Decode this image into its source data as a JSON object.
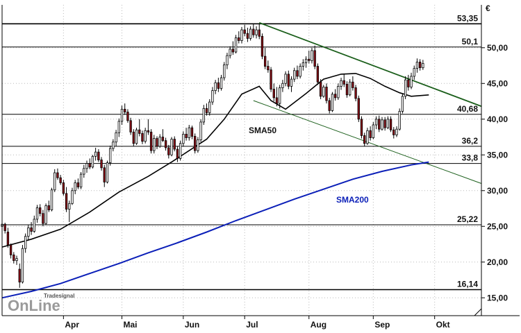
{
  "logo": {
    "brand": "Tradesignal",
    "mark": "OnLine"
  },
  "chart_data": {
    "type": "candlestick",
    "currency": "€",
    "yticks": [
      "50,00",
      "45,00",
      "40,00",
      "35,00",
      "30,00",
      "25,00",
      "20,00",
      "15,00"
    ],
    "ytick_values": [
      50,
      45,
      40,
      35,
      30,
      25,
      20,
      15
    ],
    "ylim": [
      12.5,
      56
    ],
    "xlim": [
      0,
      164
    ],
    "months": [
      "Apr",
      "Mai",
      "Jun",
      "Jul",
      "Aug",
      "Sep",
      "Okt"
    ],
    "month_positions": [
      21,
      41,
      62,
      83,
      105,
      127,
      148
    ],
    "levels": [
      {
        "label": "53,35",
        "value": 53.35
      },
      {
        "label": "50,1",
        "value": 50.1
      },
      {
        "label": "40,68",
        "value": 40.68
      },
      {
        "label": "36,2",
        "value": 36.2
      },
      {
        "label": "33,8",
        "value": 33.8
      },
      {
        "label": "25,22",
        "value": 25.22
      },
      {
        "label": "16,14",
        "value": 16.14
      }
    ],
    "trendlines": [
      {
        "from": [
          88,
          53.5
        ],
        "to": [
          164,
          41.8
        ],
        "color": "#1a5e1a"
      },
      {
        "from": [
          86,
          42.6
        ],
        "to": [
          164,
          31.0
        ],
        "color": "#1a5e1a"
      }
    ],
    "sma50_label": "SMA50",
    "sma200_label": "SMA200",
    "sma50": [
      [
        0,
        22.1
      ],
      [
        10,
        23.2
      ],
      [
        20,
        24.6
      ],
      [
        30,
        27.0
      ],
      [
        40,
        29.8
      ],
      [
        50,
        32.0
      ],
      [
        58,
        34.0
      ],
      [
        64,
        35.6
      ],
      [
        70,
        37.2
      ],
      [
        76,
        40.0
      ],
      [
        82,
        43.5
      ],
      [
        88,
        44.6
      ],
      [
        92,
        42.6
      ],
      [
        97,
        41.4
      ],
      [
        104,
        43.6
      ],
      [
        110,
        45.6
      ],
      [
        116,
        46.3
      ],
      [
        121,
        46.4
      ],
      [
        126,
        45.7
      ],
      [
        131,
        44.6
      ],
      [
        136,
        43.7
      ],
      [
        140,
        43.2
      ],
      [
        143,
        43.3
      ],
      [
        146,
        43.4
      ]
    ],
    "sma200": [
      [
        0,
        15.0
      ],
      [
        10,
        15.9
      ],
      [
        20,
        17.0
      ],
      [
        30,
        18.4
      ],
      [
        40,
        19.8
      ],
      [
        50,
        21.3
      ],
      [
        60,
        22.7
      ],
      [
        70,
        24.2
      ],
      [
        80,
        25.8
      ],
      [
        90,
        27.3
      ],
      [
        100,
        28.8
      ],
      [
        110,
        30.2
      ],
      [
        120,
        31.6
      ],
      [
        130,
        32.7
      ],
      [
        140,
        33.6
      ],
      [
        146,
        34.0
      ]
    ],
    "candles": [
      [
        0,
        25.0,
        25.8,
        24.8,
        25.3
      ],
      [
        1,
        25.3,
        25.5,
        24.0,
        24.4
      ],
      [
        2,
        24.2,
        24.8,
        22.0,
        22.4
      ],
      [
        3,
        22.4,
        22.6,
        20.5,
        21.0
      ],
      [
        4,
        21.0,
        21.4,
        19.8,
        20.2
      ],
      [
        5,
        20.2,
        20.9,
        19.6,
        20.5
      ],
      [
        6,
        19.0,
        19.8,
        16.4,
        17.2
      ],
      [
        7,
        17.2,
        22.4,
        17.0,
        21.9
      ],
      [
        8,
        21.9,
        24.0,
        21.3,
        23.6
      ],
      [
        9,
        23.6,
        25.2,
        23.0,
        24.8
      ],
      [
        10,
        24.8,
        25.6,
        23.8,
        24.3
      ],
      [
        11,
        24.3,
        26.5,
        24.1,
        26.0
      ],
      [
        12,
        26.0,
        28.0,
        25.5,
        27.6
      ],
      [
        13,
        27.6,
        28.1,
        26.4,
        26.8
      ],
      [
        14,
        26.8,
        27.3,
        25.0,
        25.4
      ],
      [
        15,
        25.4,
        28.2,
        25.2,
        27.9
      ],
      [
        16,
        27.9,
        28.6,
        27.0,
        27.3
      ],
      [
        17,
        27.3,
        30.4,
        27.1,
        30.1
      ],
      [
        18,
        30.1,
        33.0,
        29.8,
        32.5
      ],
      [
        19,
        32.5,
        33.1,
        31.5,
        31.8
      ],
      [
        20,
        31.8,
        32.2,
        30.8,
        31.1
      ],
      [
        21,
        31.1,
        31.5,
        29.3,
        29.6
      ],
      [
        22,
        29.6,
        30.5,
        27.0,
        27.4
      ],
      [
        23,
        27.4,
        28.6,
        25.6,
        28.2
      ],
      [
        24,
        28.2,
        30.4,
        28.0,
        30.0
      ],
      [
        25,
        30.0,
        31.5,
        29.5,
        31.1
      ],
      [
        26,
        31.1,
        31.7,
        30.2,
        30.5
      ],
      [
        27,
        30.5,
        32.6,
        30.2,
        32.3
      ],
      [
        28,
        32.3,
        33.6,
        31.8,
        33.1
      ],
      [
        29,
        33.1,
        34.2,
        32.5,
        33.8
      ],
      [
        30,
        33.8,
        34.5,
        33.0,
        33.3
      ],
      [
        31,
        33.3,
        35.0,
        33.1,
        34.8
      ],
      [
        32,
        34.8,
        36.0,
        34.2,
        35.4
      ],
      [
        33,
        35.4,
        35.8,
        34.0,
        34.3
      ],
      [
        34,
        34.3,
        34.7,
        32.8,
        33.2
      ],
      [
        35,
        33.2,
        33.6,
        30.5,
        31.2
      ],
      [
        36,
        31.2,
        34.2,
        31.0,
        33.9
      ],
      [
        37,
        33.9,
        36.3,
        33.5,
        35.9
      ],
      [
        38,
        35.9,
        37.2,
        35.5,
        36.8
      ],
      [
        39,
        36.8,
        38.5,
        36.2,
        38.1
      ],
      [
        40,
        38.1,
        40.1,
        37.5,
        39.7
      ],
      [
        41,
        39.7,
        41.9,
        39.2,
        41.4
      ],
      [
        42,
        41.4,
        42.2,
        40.6,
        41.0
      ],
      [
        43,
        41.0,
        41.4,
        39.5,
        39.8
      ],
      [
        44,
        39.8,
        40.2,
        37.8,
        38.2
      ],
      [
        45,
        38.2,
        38.6,
        36.2,
        36.6
      ],
      [
        46,
        36.6,
        38.8,
        36.4,
        38.5
      ],
      [
        47,
        38.5,
        40.0,
        37.6,
        38.0
      ],
      [
        48,
        38.0,
        38.4,
        36.5,
        36.9
      ],
      [
        49,
        36.9,
        38.8,
        36.6,
        38.4
      ],
      [
        50,
        38.4,
        40.0,
        37.8,
        38.2
      ],
      [
        51,
        38.2,
        38.6,
        35.2,
        35.6
      ],
      [
        52,
        35.6,
        37.8,
        35.2,
        37.3
      ],
      [
        53,
        37.3,
        37.6,
        35.8,
        36.2
      ],
      [
        54,
        36.2,
        37.9,
        36.0,
        37.5
      ],
      [
        55,
        37.5,
        38.6,
        36.8,
        37.0
      ],
      [
        56,
        37.0,
        37.4,
        35.6,
        36.0
      ],
      [
        57,
        36.0,
        36.4,
        34.5,
        35.0
      ],
      [
        58,
        35.0,
        37.5,
        34.8,
        37.2
      ],
      [
        59,
        37.2,
        37.6,
        35.5,
        35.8
      ],
      [
        60,
        35.8,
        36.2,
        34.0,
        34.5
      ],
      [
        61,
        34.5,
        37.0,
        34.2,
        36.6
      ],
      [
        62,
        36.6,
        38.3,
        36.2,
        37.9
      ],
      [
        63,
        37.9,
        38.8,
        37.0,
        37.4
      ],
      [
        64,
        37.4,
        39.2,
        37.0,
        38.8
      ],
      [
        65,
        38.8,
        39.1,
        37.2,
        37.6
      ],
      [
        66,
        37.6,
        38.0,
        35.2,
        35.6
      ],
      [
        67,
        35.6,
        37.5,
        35.3,
        37.1
      ],
      [
        68,
        37.1,
        40.0,
        36.8,
        39.6
      ],
      [
        69,
        39.6,
        42.0,
        39.2,
        41.5
      ],
      [
        70,
        41.5,
        42.2,
        40.5,
        40.9
      ],
      [
        71,
        40.9,
        42.8,
        40.5,
        42.4
      ],
      [
        72,
        42.4,
        44.5,
        42.0,
        44.0
      ],
      [
        73,
        44.0,
        45.5,
        43.5,
        45.1
      ],
      [
        74,
        45.1,
        45.8,
        43.8,
        44.3
      ],
      [
        75,
        44.3,
        46.2,
        44.0,
        45.8
      ],
      [
        76,
        45.8,
        48.0,
        45.4,
        47.6
      ],
      [
        77,
        47.6,
        49.3,
        47.0,
        48.9
      ],
      [
        78,
        48.9,
        50.2,
        48.5,
        49.8
      ],
      [
        79,
        49.8,
        50.9,
        49.0,
        49.4
      ],
      [
        80,
        49.4,
        51.8,
        49.2,
        51.4
      ],
      [
        81,
        51.4,
        52.3,
        50.6,
        51.0
      ],
      [
        82,
        51.0,
        52.9,
        50.6,
        52.5
      ],
      [
        83,
        52.5,
        53.2,
        51.6,
        52.0
      ],
      [
        84,
        52.0,
        52.8,
        50.8,
        51.3
      ],
      [
        85,
        51.3,
        53.0,
        51.0,
        52.6
      ],
      [
        86,
        52.6,
        53.3,
        51.4,
        51.8
      ],
      [
        87,
        51.8,
        53.0,
        51.3,
        52.5
      ],
      [
        88,
        52.5,
        53.3,
        51.2,
        51.6
      ],
      [
        89,
        51.6,
        52.0,
        48.4,
        48.8
      ],
      [
        90,
        48.8,
        50.0,
        47.0,
        47.4
      ],
      [
        91,
        47.4,
        48.2,
        46.5,
        46.9
      ],
      [
        92,
        46.9,
        47.3,
        43.8,
        44.2
      ],
      [
        93,
        44.2,
        45.0,
        42.5,
        43.0
      ],
      [
        94,
        43.0,
        44.5,
        41.8,
        42.2
      ],
      [
        95,
        42.2,
        44.8,
        41.5,
        44.4
      ],
      [
        96,
        44.4,
        45.5,
        43.8,
        45.0
      ],
      [
        97,
        45.0,
        46.7,
        44.6,
        46.3
      ],
      [
        98,
        46.3,
        46.8,
        44.2,
        44.6
      ],
      [
        99,
        44.6,
        46.0,
        43.8,
        45.6
      ],
      [
        100,
        45.6,
        47.2,
        45.2,
        46.8
      ],
      [
        101,
        46.8,
        47.5,
        45.6,
        46.0
      ],
      [
        102,
        46.0,
        47.8,
        45.7,
        47.4
      ],
      [
        103,
        47.4,
        48.4,
        46.8,
        47.9
      ],
      [
        104,
        47.9,
        48.8,
        47.2,
        48.4
      ],
      [
        105,
        48.4,
        49.6,
        47.8,
        48.2
      ],
      [
        106,
        48.2,
        50.0,
        47.8,
        49.6
      ],
      [
        107,
        49.6,
        50.3,
        47.0,
        47.4
      ],
      [
        108,
        47.4,
        47.8,
        44.8,
        45.2
      ],
      [
        109,
        45.2,
        45.6,
        42.8,
        43.2
      ],
      [
        110,
        43.2,
        44.8,
        43.0,
        44.5
      ],
      [
        111,
        44.5,
        45.0,
        42.2,
        42.6
      ],
      [
        112,
        42.6,
        43.0,
        40.8,
        41.2
      ],
      [
        113,
        41.2,
        43.8,
        41.0,
        43.5
      ],
      [
        114,
        43.5,
        44.2,
        42.6,
        43.0
      ],
      [
        115,
        43.0,
        45.0,
        42.7,
        44.6
      ],
      [
        116,
        44.6,
        45.8,
        44.1,
        45.4
      ],
      [
        117,
        45.4,
        46.3,
        44.5,
        44.9
      ],
      [
        118,
        44.9,
        45.3,
        43.0,
        43.4
      ],
      [
        119,
        43.4,
        45.6,
        43.2,
        45.2
      ],
      [
        120,
        45.2,
        46.0,
        44.0,
        44.4
      ],
      [
        121,
        44.4,
        44.8,
        42.5,
        42.9
      ],
      [
        122,
        42.9,
        43.3,
        39.6,
        40.0
      ],
      [
        123,
        40.0,
        40.4,
        37.3,
        37.7
      ],
      [
        124,
        37.7,
        38.1,
        36.2,
        36.6
      ],
      [
        125,
        36.6,
        38.8,
        36.4,
        38.4
      ],
      [
        126,
        38.4,
        39.0,
        37.0,
        37.4
      ],
      [
        127,
        37.4,
        39.6,
        37.2,
        39.2
      ],
      [
        128,
        39.2,
        40.4,
        38.6,
        40.0
      ],
      [
        129,
        40.0,
        40.5,
        38.2,
        38.6
      ],
      [
        130,
        38.6,
        40.3,
        38.4,
        39.9
      ],
      [
        131,
        39.9,
        40.3,
        38.4,
        38.8
      ],
      [
        132,
        38.8,
        40.4,
        38.6,
        40.0
      ],
      [
        133,
        40.0,
        40.4,
        38.2,
        38.5
      ],
      [
        134,
        38.5,
        38.9,
        37.3,
        37.8
      ],
      [
        135,
        37.8,
        39.0,
        37.5,
        38.6
      ],
      [
        136,
        38.6,
        41.5,
        38.4,
        41.1
      ],
      [
        137,
        41.1,
        43.5,
        40.8,
        43.2
      ],
      [
        138,
        43.2,
        46.0,
        42.8,
        45.5
      ],
      [
        139,
        45.5,
        46.2,
        44.0,
        44.5
      ],
      [
        140,
        44.5,
        46.5,
        44.2,
        46.0
      ],
      [
        141,
        46.0,
        47.5,
        45.5,
        47.1
      ],
      [
        142,
        47.1,
        48.5,
        46.5,
        48.0
      ],
      [
        143,
        48.0,
        48.4,
        46.8,
        47.2
      ],
      [
        144,
        47.2,
        48.3,
        46.9,
        47.8
      ]
    ]
  }
}
